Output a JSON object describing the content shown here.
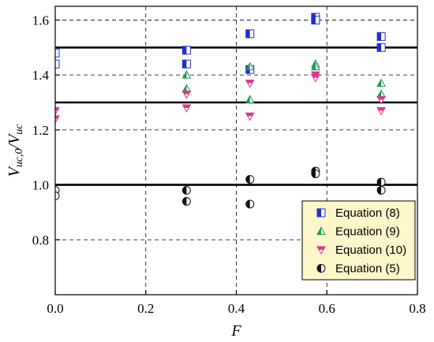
{
  "chart_data": {
    "type": "scatter",
    "xlabel": "F",
    "ylabel_parts": {
      "main": "V",
      "sub": "uc,0",
      "slash": "/",
      "main2": "V",
      "sub2": "uc"
    },
    "xlim": [
      0,
      0.8
    ],
    "ylim": [
      0.6,
      1.65
    ],
    "xticks": [
      0.0,
      0.2,
      0.4,
      0.6,
      0.8
    ],
    "xtick_labels": [
      "0.0",
      "0.2",
      "0.4",
      "0.6",
      "0.8"
    ],
    "yticks": [
      0.8,
      1.0,
      1.2,
      1.4,
      1.6
    ],
    "ytick_labels": [
      "0.8",
      "1.0",
      "1.2",
      "1.4",
      "1.6"
    ],
    "grid": true,
    "reference_lines": [
      1.0,
      1.3,
      1.5
    ],
    "legend_position": "bottom-right",
    "legend_background": "#fdf6c8",
    "series": [
      {
        "name": "Equation (8)",
        "marker": "half-square",
        "color": "#1f2fd6",
        "points": [
          [
            0.0,
            1.48
          ],
          [
            0.0,
            1.44
          ],
          [
            0.29,
            1.49
          ],
          [
            0.29,
            1.44
          ],
          [
            0.43,
            1.55
          ],
          [
            0.43,
            1.42
          ],
          [
            0.575,
            1.61
          ],
          [
            0.575,
            1.6
          ],
          [
            0.72,
            1.54
          ],
          [
            0.72,
            1.5
          ]
        ]
      },
      {
        "name": "Equation (9)",
        "marker": "half-triangle-up",
        "color": "#1a9a50",
        "points": [
          [
            0.29,
            1.4
          ],
          [
            0.29,
            1.35
          ],
          [
            0.43,
            1.43
          ],
          [
            0.43,
            1.31
          ],
          [
            0.575,
            1.44
          ],
          [
            0.575,
            1.43
          ],
          [
            0.72,
            1.37
          ],
          [
            0.72,
            1.33
          ]
        ]
      },
      {
        "name": "Equation (10)",
        "marker": "half-triangle-down",
        "color": "#e0358a",
        "points": [
          [
            0.0,
            1.27
          ],
          [
            0.0,
            1.24
          ],
          [
            0.29,
            1.33
          ],
          [
            0.29,
            1.28
          ],
          [
            0.43,
            1.37
          ],
          [
            0.43,
            1.25
          ],
          [
            0.575,
            1.4
          ],
          [
            0.575,
            1.39
          ],
          [
            0.72,
            1.31
          ],
          [
            0.72,
            1.27
          ]
        ]
      },
      {
        "name": "Equation (5)",
        "marker": "half-circle",
        "color": "#111111",
        "points": [
          [
            0.0,
            0.98
          ],
          [
            0.0,
            0.96
          ],
          [
            0.29,
            0.98
          ],
          [
            0.29,
            0.94
          ],
          [
            0.43,
            1.02
          ],
          [
            0.43,
            0.93
          ],
          [
            0.575,
            1.05
          ],
          [
            0.575,
            1.04
          ],
          [
            0.72,
            1.01
          ],
          [
            0.72,
            0.98
          ]
        ]
      }
    ]
  }
}
